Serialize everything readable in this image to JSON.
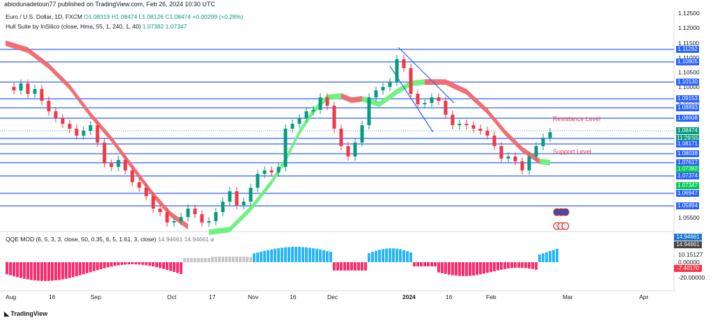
{
  "header": {
    "published_line": "abiodunadetoun77 published on TradingView.com, Feb 26, 2024 10:30 UTC"
  },
  "legend": {
    "symbol": "Euro / U.S. Dollar, 1D, FXCM",
    "ohlc": "O1.08319 H1.08474 L1.08126 C1.08474 +0.00299 (+0.28%)",
    "hull_name": "Hull Suite by InSilico (close, Hma, 55, 1, 240, 1, 40)",
    "hull_values": "1.07382  1.07347",
    "qqe_name": "QQE MOD (6, 5, 3, 3, close, 50, 0.35, 6, 5, 1.61, 3, close)",
    "qqe_values": "14.94661  14.94661"
  },
  "price_axis": [
    "1.12500",
    "1.12000",
    "1.11500",
    "1.11000",
    "1.10500",
    "1.10000",
    "1.09500",
    "1.05500"
  ],
  "price_tags": [
    {
      "label": "1.11292",
      "color": "#2962ff"
    },
    {
      "label": "1.10805",
      "color": "#2962ff"
    },
    {
      "label": "1.10130",
      "color": "#2962ff"
    },
    {
      "label": "1.09153",
      "color": "#2962ff"
    },
    {
      "label": "1.08893",
      "color": "#2962ff"
    },
    {
      "label": "1.08608",
      "color": "#2962ff"
    },
    {
      "label": "1.08474",
      "color": "#089981"
    },
    {
      "label": "11:29:55",
      "color": "#089981"
    },
    {
      "label": "1.08171",
      "color": "#2962ff"
    },
    {
      "label": "1.08038",
      "color": "#2962ff"
    },
    {
      "label": "1.07617",
      "color": "#2962ff"
    },
    {
      "label": "1.07382",
      "color": "#00c853"
    },
    {
      "label": "1.07374",
      "color": "#2962ff"
    },
    {
      "label": "1.07347",
      "color": "#00c853"
    },
    {
      "label": "1.06947",
      "color": "#2962ff"
    },
    {
      "label": "1.05894",
      "color": "#2962ff"
    }
  ],
  "qqe_axis": [
    "10.15127",
    "0.00000",
    "-20.00000"
  ],
  "qqe_tags": [
    {
      "label": "14.94661",
      "color": "#1976d2"
    },
    {
      "label": "14.94661",
      "color": "#444444"
    },
    {
      "label": "-7.40170",
      "color": "#f23645"
    }
  ],
  "time_axis": [
    "Aug",
    "16",
    "Sep",
    "Oct",
    "17",
    "Nov",
    "16",
    "Dec",
    "2024",
    "16",
    "Feb",
    "Mar",
    "Apr"
  ],
  "annotations": {
    "resistance": "Resistance Level",
    "support": "Support Level"
  },
  "brand": {
    "logo_text": "TradingView"
  },
  "colors": {
    "up": "#089981",
    "down": "#f23645",
    "level": "#2962ff",
    "hull_up": "#69f07a",
    "hull_down": "#f0676b",
    "qqe_up": "#29b6f6",
    "qqe_down": "#ff2a6d",
    "qqe_neutral": "#c8c8c8"
  }
}
